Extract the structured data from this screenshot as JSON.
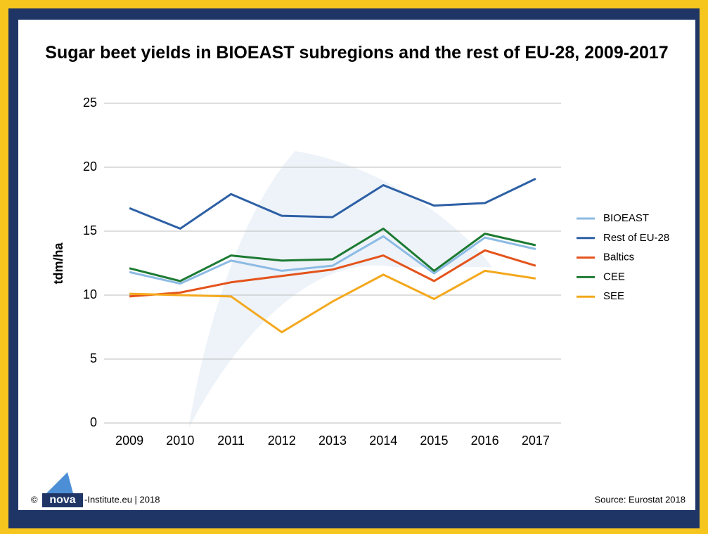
{
  "chart_data": {
    "type": "line",
    "title": "Sugar beet yields in BIOEAST subregions and the rest of EU-28, 2009-2017",
    "y_label": "tdm/ha",
    "categories": [
      "2009",
      "2010",
      "2011",
      "2012",
      "2013",
      "2014",
      "2015",
      "2016",
      "2017"
    ],
    "series": [
      {
        "name": "BIOEAST",
        "color": "#8dbbe3",
        "values": [
          11.8,
          10.9,
          12.7,
          11.9,
          12.3,
          14.6,
          11.7,
          14.5,
          13.6
        ]
      },
      {
        "name": "Rest of EU-28",
        "color": "#2d60a5",
        "values": [
          16.8,
          15.2,
          17.9,
          16.2,
          16.1,
          18.6,
          17.0,
          17.2,
          19.1
        ]
      },
      {
        "name": "Baltics",
        "color": "#e4531b",
        "values": [
          9.9,
          10.2,
          11.0,
          11.5,
          12.0,
          13.1,
          11.1,
          13.5,
          12.3
        ]
      },
      {
        "name": "CEE",
        "color": "#1d7a33",
        "values": [
          12.1,
          11.1,
          13.1,
          12.7,
          12.8,
          15.2,
          11.9,
          14.8,
          13.9
        ]
      },
      {
        "name": "SEE",
        "color": "#f4a81d",
        "values": [
          10.1,
          10.0,
          9.9,
          7.1,
          9.5,
          11.6,
          9.7,
          11.9,
          11.3
        ]
      }
    ],
    "ylim": [
      0,
      25
    ],
    "yticks": [
      0,
      5,
      10,
      15,
      20,
      25
    ],
    "grid": true,
    "legend": "right",
    "credit_symbol": "©",
    "credit_logo": "nova",
    "credit_text": "-Institute.eu | 2018",
    "source": "Source: Eurostat 2018"
  }
}
